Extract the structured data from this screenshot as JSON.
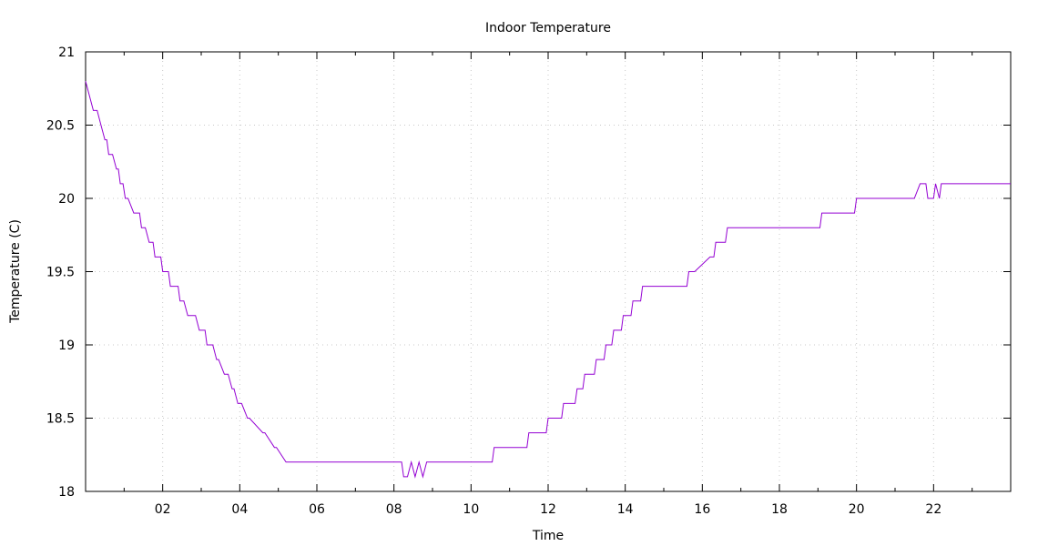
{
  "chart_data": {
    "type": "line",
    "title": "Indoor Temperature",
    "xlabel": "Time",
    "ylabel": "Temperature (C)",
    "xlim": [
      0,
      24
    ],
    "ylim": [
      18,
      21
    ],
    "x_ticks": [
      2,
      4,
      6,
      8,
      10,
      12,
      14,
      16,
      18,
      20,
      22
    ],
    "x_tick_labels": [
      "02",
      "04",
      "06",
      "08",
      "10",
      "12",
      "14",
      "16",
      "18",
      "20",
      "22"
    ],
    "y_ticks": [
      18,
      18.5,
      19,
      19.5,
      20,
      20.5,
      21
    ],
    "y_tick_labels": [
      "18",
      "18.5",
      "19",
      "19.5",
      "20",
      "20.5",
      "21"
    ],
    "grid": true,
    "line_color": "#9400d3",
    "series": [
      {
        "x": [
          0.0,
          0.2,
          0.3,
          0.4,
          0.5,
          0.55,
          0.6,
          0.7,
          0.8,
          0.85,
          0.9,
          0.97,
          1.03,
          1.1,
          1.25,
          1.4,
          1.45,
          1.55,
          1.65,
          1.75,
          1.8,
          1.95,
          2.0,
          2.15,
          2.2,
          2.4,
          2.45,
          2.55,
          2.65,
          2.85,
          2.95,
          3.1,
          3.15,
          3.3,
          3.4,
          3.45,
          3.6,
          3.7,
          3.8,
          3.85,
          3.95,
          4.05,
          4.2,
          4.25,
          4.6,
          4.65,
          4.9,
          4.95,
          5.2,
          5.25,
          5.5,
          5.55,
          5.9,
          5.95,
          6.3,
          6.35,
          6.75,
          6.8,
          7.15,
          7.2,
          7.5,
          8.2,
          8.25,
          8.35,
          8.45,
          8.55,
          8.65,
          8.75,
          8.85,
          10.55,
          10.6,
          11.45,
          11.5,
          11.95,
          12.0,
          12.35,
          12.4,
          12.7,
          12.75,
          12.9,
          12.95,
          13.2,
          13.25,
          13.45,
          13.5,
          13.65,
          13.7,
          13.9,
          13.95,
          14.15,
          14.2,
          14.4,
          14.45,
          14.5,
          14.55,
          14.65,
          14.7,
          14.85,
          14.9,
          15.0,
          15.05,
          15.15,
          15.2,
          15.35,
          15.4,
          15.5,
          15.55,
          15.6,
          15.65,
          15.8,
          16.2,
          16.3,
          16.35,
          16.6,
          16.65,
          16.8,
          16.85,
          17.0,
          17.05,
          17.2,
          17.25,
          17.5,
          17.55,
          17.75,
          17.8,
          19.05,
          19.1,
          19.95,
          20.0,
          21.5,
          21.65,
          21.8,
          21.85,
          22.0,
          22.05,
          22.15,
          22.2,
          22.3,
          22.35,
          24.0
        ],
        "y": [
          20.8,
          20.6,
          20.6,
          20.5,
          20.4,
          20.4,
          20.3,
          20.3,
          20.2,
          20.2,
          20.1,
          20.1,
          20.0,
          20.0,
          19.9,
          19.9,
          19.8,
          19.8,
          19.7,
          19.7,
          19.6,
          19.6,
          19.5,
          19.5,
          19.4,
          19.4,
          19.3,
          19.3,
          19.2,
          19.2,
          19.1,
          19.1,
          19.0,
          19.0,
          18.9,
          18.9,
          18.8,
          18.8,
          18.7,
          18.7,
          18.6,
          18.6,
          18.5,
          18.5,
          18.4,
          18.4,
          18.3,
          18.3,
          18.2,
          18.2,
          18.2,
          18.2,
          18.2,
          18.2,
          18.2,
          18.2,
          18.2,
          18.2,
          18.2,
          18.2,
          18.2,
          18.2,
          18.1,
          18.1,
          18.2,
          18.1,
          18.2,
          18.1,
          18.2,
          18.2,
          18.3,
          18.3,
          18.4,
          18.4,
          18.5,
          18.5,
          18.6,
          18.6,
          18.7,
          18.7,
          18.8,
          18.8,
          18.9,
          18.9,
          19.0,
          19.0,
          19.1,
          19.1,
          19.2,
          19.2,
          19.3,
          19.3,
          19.4,
          19.4,
          19.4,
          19.4,
          19.4,
          19.4,
          19.4,
          19.4,
          19.4,
          19.4,
          19.4,
          19.4,
          19.4,
          19.4,
          19.4,
          19.4,
          19.5,
          19.5,
          19.6,
          19.6,
          19.7,
          19.7,
          19.8,
          19.8,
          19.8,
          19.8,
          19.8,
          19.8,
          19.8,
          19.8,
          19.8,
          19.8,
          19.8,
          19.8,
          19.9,
          19.9,
          20.0,
          20.0,
          20.1,
          20.1,
          20.0,
          20.0,
          20.1,
          20.0,
          20.1,
          20.1,
          20.1,
          20.1
        ]
      }
    ]
  }
}
